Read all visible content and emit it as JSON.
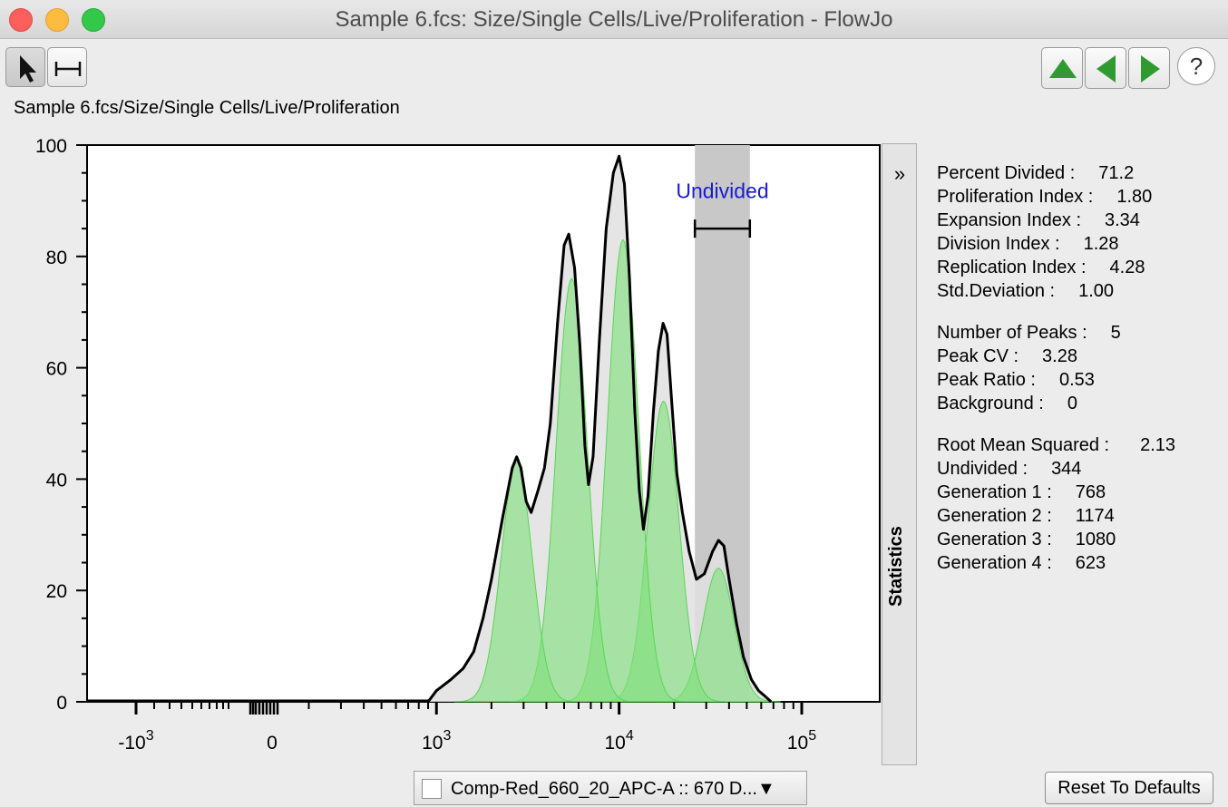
{
  "window": {
    "title": "Sample 6.fcs: Size/Single Cells/Live/Proliferation - FlowJo"
  },
  "path": "Sample 6.fcs/Size/Single Cells/Live/Proliferation",
  "colors": {
    "gate": "#c8c8c8",
    "peak": "#7fe07a",
    "envelope": "#000000",
    "gate_label": "#1a1ad6"
  },
  "gate_label": "Undivided",
  "sidebar": {
    "collapse_icon": "»",
    "title": "Statistics"
  },
  "stats": [
    {
      "label": "Percent Divided :",
      "value": "71.2"
    },
    {
      "label": "Proliferation Index :",
      "value": "1.80"
    },
    {
      "label": "Expansion Index :",
      "value": "3.34"
    },
    {
      "label": "Division Index :",
      "value": "1.28"
    },
    {
      "label": "Replication Index :",
      "value": "4.28"
    },
    {
      "label": "Std.Deviation :",
      "value": "1.00"
    },
    {
      "label": "Number of Peaks :",
      "value": "5"
    },
    {
      "label": "Peak CV :",
      "value": "3.28"
    },
    {
      "label": "Peak Ratio :",
      "value": "0.53"
    },
    {
      "label": "Background :",
      "value": "0"
    },
    {
      "label": "Root Mean Squared :",
      "value": "2.13"
    },
    {
      "label": "Undivided :",
      "value": "344"
    },
    {
      "label": "Generation 1 :",
      "value": "768"
    },
    {
      "label": "Generation 2 :",
      "value": "1174"
    },
    {
      "label": "Generation 3 :",
      "value": "1080"
    },
    {
      "label": "Generation 4 :",
      "value": "623"
    }
  ],
  "axis_selector": {
    "label": "Comp-Red_660_20_APC-A :: 670 D...▼"
  },
  "reset_label": "Reset To Defaults",
  "help_label": "?",
  "chart_data": {
    "type": "area",
    "x_scale": "biexponential",
    "ylim": [
      0,
      100
    ],
    "y_ticks": [
      "0",
      "20",
      "40",
      "60",
      "80",
      "100"
    ],
    "x_ticks": [
      {
        "base": "-10",
        "exp": "3"
      },
      {
        "base": "0",
        "exp": ""
      },
      {
        "base": "10",
        "exp": "3"
      },
      {
        "base": "10",
        "exp": "4"
      },
      {
        "base": "10",
        "exp": "5"
      }
    ],
    "gate": {
      "name": "Undivided",
      "range": [
        26000,
        52000
      ]
    },
    "envelope": [
      [
        900,
        0
      ],
      [
        1000,
        2
      ],
      [
        1200,
        4
      ],
      [
        1400,
        6
      ],
      [
        1600,
        9
      ],
      [
        1800,
        15
      ],
      [
        2000,
        22
      ],
      [
        2300,
        33
      ],
      [
        2600,
        42
      ],
      [
        2750,
        44
      ],
      [
        2900,
        42
      ],
      [
        3100,
        36
      ],
      [
        3300,
        34
      ],
      [
        3600,
        38
      ],
      [
        3900,
        42
      ],
      [
        4200,
        50
      ],
      [
        4600,
        68
      ],
      [
        5000,
        82
      ],
      [
        5300,
        84
      ],
      [
        5700,
        78
      ],
      [
        6100,
        64
      ],
      [
        6500,
        46
      ],
      [
        6800,
        39
      ],
      [
        7200,
        44
      ],
      [
        7800,
        65
      ],
      [
        8500,
        85
      ],
      [
        9300,
        95
      ],
      [
        10000,
        98
      ],
      [
        10700,
        93
      ],
      [
        11400,
        76
      ],
      [
        12200,
        52
      ],
      [
        12900,
        38
      ],
      [
        13600,
        31
      ],
      [
        14400,
        37
      ],
      [
        15400,
        52
      ],
      [
        16400,
        63
      ],
      [
        17400,
        68
      ],
      [
        18300,
        66
      ],
      [
        19400,
        54
      ],
      [
        20700,
        41
      ],
      [
        22200,
        34
      ],
      [
        24200,
        27
      ],
      [
        26500,
        22
      ],
      [
        29300,
        23
      ],
      [
        32500,
        27
      ],
      [
        35000,
        29
      ],
      [
        37500,
        28
      ],
      [
        40000,
        22
      ],
      [
        44000,
        14
      ],
      [
        48000,
        8
      ],
      [
        53000,
        4
      ],
      [
        58000,
        2
      ],
      [
        63000,
        1
      ],
      [
        68000,
        0
      ]
    ],
    "peaks": [
      {
        "name": "Undivided",
        "center": 35000,
        "height": 24
      },
      {
        "name": "Generation 1",
        "center": 17500,
        "height": 54
      },
      {
        "name": "Generation 2",
        "center": 10500,
        "height": 83
      },
      {
        "name": "Generation 3",
        "center": 5500,
        "height": 76
      },
      {
        "name": "Generation 4",
        "center": 2750,
        "height": 43
      }
    ]
  }
}
